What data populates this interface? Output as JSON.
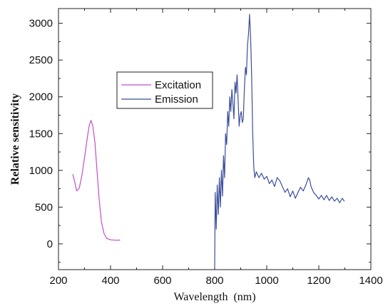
{
  "chart_data": {
    "type": "line",
    "title": "",
    "xlabel": "Wavelength  (nm)",
    "ylabel": "Relative sensitivity",
    "xlim": [
      200,
      1400
    ],
    "ylim": [
      -350,
      3200
    ],
    "x_ticks": [
      200,
      400,
      600,
      800,
      1000,
      1200,
      1400
    ],
    "y_ticks": [
      0,
      500,
      1000,
      1500,
      2000,
      2500,
      3000
    ],
    "grid": false,
    "legend_position": "upper-left inside plot",
    "series": [
      {
        "name": "Excitation",
        "color": "#c050c8",
        "points": [
          [
            255,
            950
          ],
          [
            262,
            850
          ],
          [
            270,
            720
          ],
          [
            280,
            760
          ],
          [
            290,
            930
          ],
          [
            300,
            1170
          ],
          [
            310,
            1430
          ],
          [
            318,
            1610
          ],
          [
            325,
            1680
          ],
          [
            332,
            1600
          ],
          [
            340,
            1380
          ],
          [
            348,
            1000
          ],
          [
            356,
            620
          ],
          [
            365,
            300
          ],
          [
            375,
            140
          ],
          [
            385,
            75
          ],
          [
            400,
            55
          ],
          [
            420,
            50
          ],
          [
            437,
            52
          ]
        ]
      },
      {
        "name": "Emission",
        "color": "#3c4e9c",
        "points": [
          [
            800,
            -330
          ],
          [
            802,
            700
          ],
          [
            806,
            200
          ],
          [
            810,
            800
          ],
          [
            814,
            400
          ],
          [
            818,
            900
          ],
          [
            822,
            500
          ],
          [
            826,
            1000
          ],
          [
            830,
            650
          ],
          [
            834,
            1200
          ],
          [
            838,
            900
          ],
          [
            842,
            1500
          ],
          [
            846,
            1350
          ],
          [
            850,
            1800
          ],
          [
            854,
            1600
          ],
          [
            858,
            2000
          ],
          [
            862,
            1800
          ],
          [
            866,
            2100
          ],
          [
            870,
            1900
          ],
          [
            874,
            1700
          ],
          [
            878,
            2200
          ],
          [
            882,
            2050
          ],
          [
            886,
            2300
          ],
          [
            890,
            1950
          ],
          [
            894,
            1600
          ],
          [
            898,
            1750
          ],
          [
            902,
            1800
          ],
          [
            906,
            1650
          ],
          [
            910,
            1700
          ],
          [
            914,
            2100
          ],
          [
            918,
            2400
          ],
          [
            922,
            2300
          ],
          [
            926,
            2700
          ],
          [
            930,
            2850
          ],
          [
            934,
            3120
          ],
          [
            938,
            2800
          ],
          [
            942,
            2300
          ],
          [
            946,
            1500
          ],
          [
            950,
            1050
          ],
          [
            954,
            900
          ],
          [
            960,
            980
          ],
          [
            970,
            900
          ],
          [
            980,
            960
          ],
          [
            990,
            880
          ],
          [
            1000,
            920
          ],
          [
            1010,
            820
          ],
          [
            1020,
            870
          ],
          [
            1030,
            780
          ],
          [
            1040,
            900
          ],
          [
            1050,
            860
          ],
          [
            1060,
            780
          ],
          [
            1070,
            700
          ],
          [
            1080,
            750
          ],
          [
            1090,
            640
          ],
          [
            1100,
            720
          ],
          [
            1110,
            620
          ],
          [
            1120,
            700
          ],
          [
            1130,
            770
          ],
          [
            1140,
            720
          ],
          [
            1150,
            800
          ],
          [
            1160,
            900
          ],
          [
            1165,
            870
          ],
          [
            1170,
            780
          ],
          [
            1180,
            700
          ],
          [
            1190,
            660
          ],
          [
            1200,
            610
          ],
          [
            1210,
            660
          ],
          [
            1220,
            600
          ],
          [
            1230,
            660
          ],
          [
            1240,
            590
          ],
          [
            1250,
            640
          ],
          [
            1260,
            580
          ],
          [
            1270,
            620
          ],
          [
            1280,
            560
          ],
          [
            1290,
            620
          ],
          [
            1298,
            580
          ]
        ]
      }
    ]
  }
}
